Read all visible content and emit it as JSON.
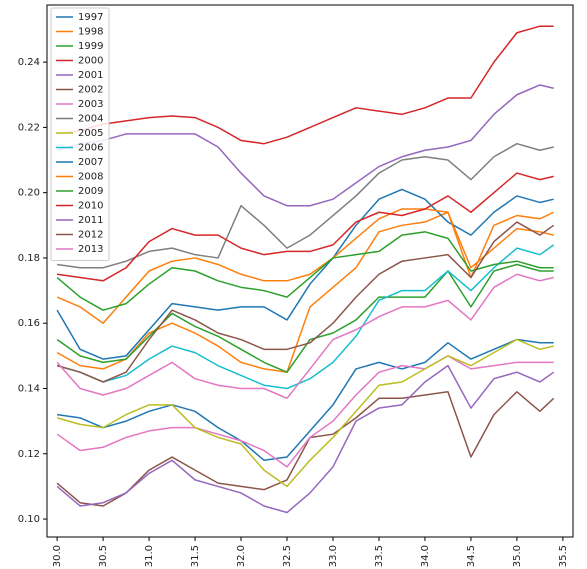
{
  "chart_data": {
    "type": "line",
    "x": [
      30.0,
      30.25,
      30.5,
      30.75,
      31.0,
      31.25,
      31.5,
      31.75,
      32.0,
      32.25,
      32.5,
      32.75,
      33.0,
      33.25,
      33.5,
      33.75,
      34.0,
      34.25,
      34.5,
      34.75,
      35.0,
      35.25,
      35.4
    ],
    "xlim": [
      29.89,
      35.61
    ],
    "ylim": [
      0.0945,
      0.2575
    ],
    "xticks": [
      {
        "value": 30.0,
        "label": "30.0"
      },
      {
        "value": 30.5,
        "label": "30.5"
      },
      {
        "value": 31.0,
        "label": "31.0"
      },
      {
        "value": 31.5,
        "label": "31.5"
      },
      {
        "value": 32.0,
        "label": "32.0"
      },
      {
        "value": 32.5,
        "label": "32.5"
      },
      {
        "value": 33.0,
        "label": "33.0"
      },
      {
        "value": 33.5,
        "label": "33.5"
      },
      {
        "value": 34.0,
        "label": "34.0"
      },
      {
        "value": 34.5,
        "label": "34.5"
      },
      {
        "value": 35.0,
        "label": "35.0"
      },
      {
        "value": 35.5,
        "label": "35.5"
      }
    ],
    "yticks": [
      {
        "value": 0.1,
        "label": "0.10"
      },
      {
        "value": 0.12,
        "label": "0.12"
      },
      {
        "value": 0.14,
        "label": "0.14"
      },
      {
        "value": 0.16,
        "label": "0.16"
      },
      {
        "value": 0.18,
        "label": "0.18"
      },
      {
        "value": 0.2,
        "label": "0.20"
      },
      {
        "value": 0.22,
        "label": "0.22"
      },
      {
        "value": 0.24,
        "label": "0.24"
      }
    ],
    "legend": "upper left",
    "series": [
      {
        "name": "1997",
        "color": "#1f77b4",
        "values": [
          0.132,
          0.131,
          0.128,
          0.13,
          0.133,
          0.135,
          0.133,
          0.128,
          0.124,
          0.118,
          0.119,
          0.127,
          0.135,
          0.146,
          0.148,
          0.146,
          0.148,
          0.154,
          0.149,
          0.152,
          0.155,
          0.154,
          0.154
        ]
      },
      {
        "name": "1998",
        "color": "#ff7f0e",
        "values": [
          0.151,
          0.147,
          0.146,
          0.149,
          0.157,
          0.16,
          0.157,
          0.153,
          0.148,
          0.146,
          0.145,
          0.165,
          0.171,
          0.177,
          0.188,
          0.19,
          0.191,
          0.194,
          0.177,
          0.183,
          0.189,
          0.188,
          0.187
        ]
      },
      {
        "name": "1999",
        "color": "#2ca02c",
        "values": [
          0.155,
          0.15,
          0.148,
          0.149,
          0.156,
          0.163,
          0.159,
          0.156,
          0.152,
          0.148,
          0.145,
          0.155,
          0.157,
          0.161,
          0.168,
          0.168,
          0.168,
          0.176,
          0.165,
          0.176,
          0.178,
          0.176,
          0.176
        ]
      },
      {
        "name": "2000",
        "color": "#d62728",
        "values": [
          0.218,
          0.219,
          0.221,
          0.222,
          0.223,
          0.2235,
          0.223,
          0.22,
          0.216,
          0.215,
          0.217,
          0.22,
          0.223,
          0.226,
          0.225,
          0.224,
          0.226,
          0.229,
          0.229,
          0.24,
          0.249,
          0.251,
          0.251
        ]
      },
      {
        "name": "2001",
        "color": "#9467bd",
        "values": [
          0.213,
          0.215,
          0.216,
          0.218,
          0.218,
          0.218,
          0.218,
          0.214,
          0.206,
          0.199,
          0.196,
          0.196,
          0.198,
          0.203,
          0.208,
          0.211,
          0.213,
          0.214,
          0.216,
          0.224,
          0.23,
          0.233,
          0.232
        ]
      },
      {
        "name": "2002",
        "color": "#8c564b",
        "values": [
          0.111,
          0.105,
          0.104,
          0.108,
          0.115,
          0.119,
          0.115,
          0.111,
          0.11,
          0.109,
          0.112,
          0.125,
          0.126,
          0.131,
          0.137,
          0.137,
          0.138,
          0.139,
          0.119,
          0.132,
          0.139,
          0.133,
          0.137
        ]
      },
      {
        "name": "2003",
        "color": "#e377c2",
        "values": [
          0.126,
          0.121,
          0.122,
          0.125,
          0.127,
          0.128,
          0.128,
          0.126,
          0.124,
          0.121,
          0.116,
          0.125,
          0.13,
          0.138,
          0.145,
          0.147,
          0.146,
          0.15,
          0.146,
          0.147,
          0.148,
          0.148,
          0.148
        ]
      },
      {
        "name": "2004",
        "color": "#7f7f7f",
        "values": [
          0.178,
          0.177,
          0.177,
          0.179,
          0.182,
          0.183,
          0.181,
          0.18,
          0.196,
          0.19,
          0.183,
          0.187,
          0.193,
          0.199,
          0.206,
          0.21,
          0.211,
          0.21,
          0.204,
          0.211,
          0.215,
          0.213,
          0.214
        ]
      },
      {
        "name": "2005",
        "color": "#bcbd22",
        "values": [
          0.131,
          0.129,
          0.128,
          0.132,
          0.135,
          0.135,
          0.128,
          0.125,
          0.123,
          0.115,
          0.11,
          0.118,
          0.125,
          0.133,
          0.141,
          0.142,
          0.146,
          0.15,
          0.147,
          0.151,
          0.155,
          0.152,
          0.153
        ]
      },
      {
        "name": "2006",
        "color": "#17becf",
        "values": [
          0.147,
          0.145,
          0.142,
          0.144,
          0.149,
          0.153,
          0.151,
          0.147,
          0.144,
          0.141,
          0.14,
          0.143,
          0.148,
          0.156,
          0.167,
          0.17,
          0.17,
          0.176,
          0.17,
          0.177,
          0.183,
          0.181,
          0.184
        ]
      },
      {
        "name": "2007",
        "color": "#1f77b4",
        "values": [
          0.164,
          0.152,
          0.149,
          0.15,
          0.158,
          0.166,
          0.165,
          0.164,
          0.165,
          0.165,
          0.161,
          0.172,
          0.18,
          0.19,
          0.198,
          0.201,
          0.198,
          0.191,
          0.187,
          0.194,
          0.199,
          0.197,
          0.198
        ]
      },
      {
        "name": "2008",
        "color": "#ff7f0e",
        "values": [
          0.168,
          0.165,
          0.16,
          0.168,
          0.176,
          0.179,
          0.18,
          0.178,
          0.175,
          0.173,
          0.173,
          0.175,
          0.18,
          0.186,
          0.192,
          0.195,
          0.195,
          0.194,
          0.174,
          0.19,
          0.193,
          0.192,
          0.194
        ]
      },
      {
        "name": "2009",
        "color": "#2ca02c",
        "values": [
          0.174,
          0.168,
          0.164,
          0.166,
          0.172,
          0.177,
          0.176,
          0.173,
          0.171,
          0.17,
          0.168,
          0.174,
          0.18,
          0.181,
          0.182,
          0.187,
          0.188,
          0.186,
          0.176,
          0.178,
          0.179,
          0.177,
          0.177
        ]
      },
      {
        "name": "2010",
        "color": "#d62728",
        "values": [
          0.175,
          0.174,
          0.173,
          0.177,
          0.185,
          0.189,
          0.187,
          0.187,
          0.183,
          0.181,
          0.182,
          0.182,
          0.184,
          0.191,
          0.194,
          0.193,
          0.195,
          0.199,
          0.194,
          0.2,
          0.206,
          0.204,
          0.205
        ]
      },
      {
        "name": "2011",
        "color": "#9467bd",
        "values": [
          0.11,
          0.104,
          0.105,
          0.108,
          0.114,
          0.118,
          0.112,
          0.11,
          0.108,
          0.104,
          0.102,
          0.108,
          0.116,
          0.13,
          0.134,
          0.135,
          0.142,
          0.147,
          0.134,
          0.143,
          0.145,
          0.142,
          0.145
        ]
      },
      {
        "name": "2012",
        "color": "#8c564b",
        "values": [
          0.147,
          0.145,
          0.142,
          0.145,
          0.155,
          0.164,
          0.161,
          0.157,
          0.155,
          0.152,
          0.152,
          0.154,
          0.16,
          0.168,
          0.175,
          0.179,
          0.18,
          0.181,
          0.174,
          0.185,
          0.191,
          0.187,
          0.19
        ]
      },
      {
        "name": "2013",
        "color": "#e377c2",
        "values": [
          0.148,
          0.14,
          0.138,
          0.14,
          0.144,
          0.148,
          0.143,
          0.141,
          0.14,
          0.14,
          0.137,
          0.146,
          0.155,
          0.158,
          0.162,
          0.165,
          0.165,
          0.167,
          0.161,
          0.171,
          0.175,
          0.173,
          0.174
        ]
      }
    ]
  }
}
